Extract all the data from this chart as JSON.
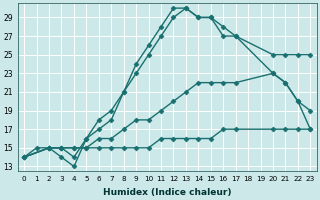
{
  "xlabel": "Humidex (Indice chaleur)",
  "bg_color": "#cce8e8",
  "grid_color": "#ffffff",
  "xlim": [
    -0.5,
    23.5
  ],
  "ylim": [
    12.5,
    30.5
  ],
  "yticks": [
    13,
    15,
    17,
    19,
    21,
    23,
    25,
    27,
    29
  ],
  "xticks": [
    0,
    1,
    2,
    3,
    4,
    5,
    6,
    7,
    8,
    9,
    10,
    11,
    12,
    13,
    14,
    15,
    16,
    17,
    18,
    19,
    20,
    21,
    22,
    23
  ],
  "series": [
    {
      "x": [
        0,
        1,
        2,
        3,
        4,
        5,
        6,
        7,
        8,
        9,
        10,
        11,
        12,
        13,
        14,
        15,
        16,
        17,
        20,
        21,
        22,
        23
      ],
      "y": [
        14,
        15,
        15,
        15,
        14,
        16,
        17,
        18,
        21,
        24,
        26,
        28,
        30,
        30,
        29,
        29,
        28,
        27,
        25,
        25,
        25,
        25
      ],
      "color": "#1a7070",
      "marker": "D",
      "markersize": 2.5,
      "linewidth": 1.0
    },
    {
      "x": [
        0,
        2,
        3,
        4,
        5,
        6,
        7,
        8,
        9,
        10,
        11,
        12,
        13,
        14,
        15,
        16,
        17,
        20,
        21,
        22,
        23
      ],
      "y": [
        14,
        15,
        14,
        13,
        16,
        18,
        19,
        21,
        23,
        25,
        27,
        29,
        30,
        29,
        29,
        27,
        27,
        23,
        22,
        20,
        19
      ],
      "color": "#1a7070",
      "marker": "D",
      "markersize": 2.5,
      "linewidth": 1.0
    },
    {
      "x": [
        0,
        2,
        3,
        4,
        5,
        6,
        7,
        8,
        9,
        10,
        11,
        12,
        13,
        14,
        15,
        16,
        17,
        20,
        21,
        22,
        23
      ],
      "y": [
        14,
        15,
        15,
        15,
        15,
        16,
        16,
        17,
        18,
        18,
        19,
        20,
        21,
        22,
        22,
        22,
        22,
        23,
        22,
        20,
        17
      ],
      "color": "#1a7070",
      "marker": "D",
      "markersize": 2.5,
      "linewidth": 1.0
    },
    {
      "x": [
        0,
        2,
        3,
        4,
        5,
        6,
        7,
        8,
        9,
        10,
        11,
        12,
        13,
        14,
        15,
        16,
        17,
        20,
        21,
        22,
        23
      ],
      "y": [
        14,
        15,
        15,
        15,
        15,
        15,
        15,
        15,
        15,
        15,
        16,
        16,
        16,
        16,
        16,
        17,
        17,
        17,
        17,
        17,
        17
      ],
      "color": "#1a7070",
      "marker": "D",
      "markersize": 2.5,
      "linewidth": 1.0
    }
  ]
}
